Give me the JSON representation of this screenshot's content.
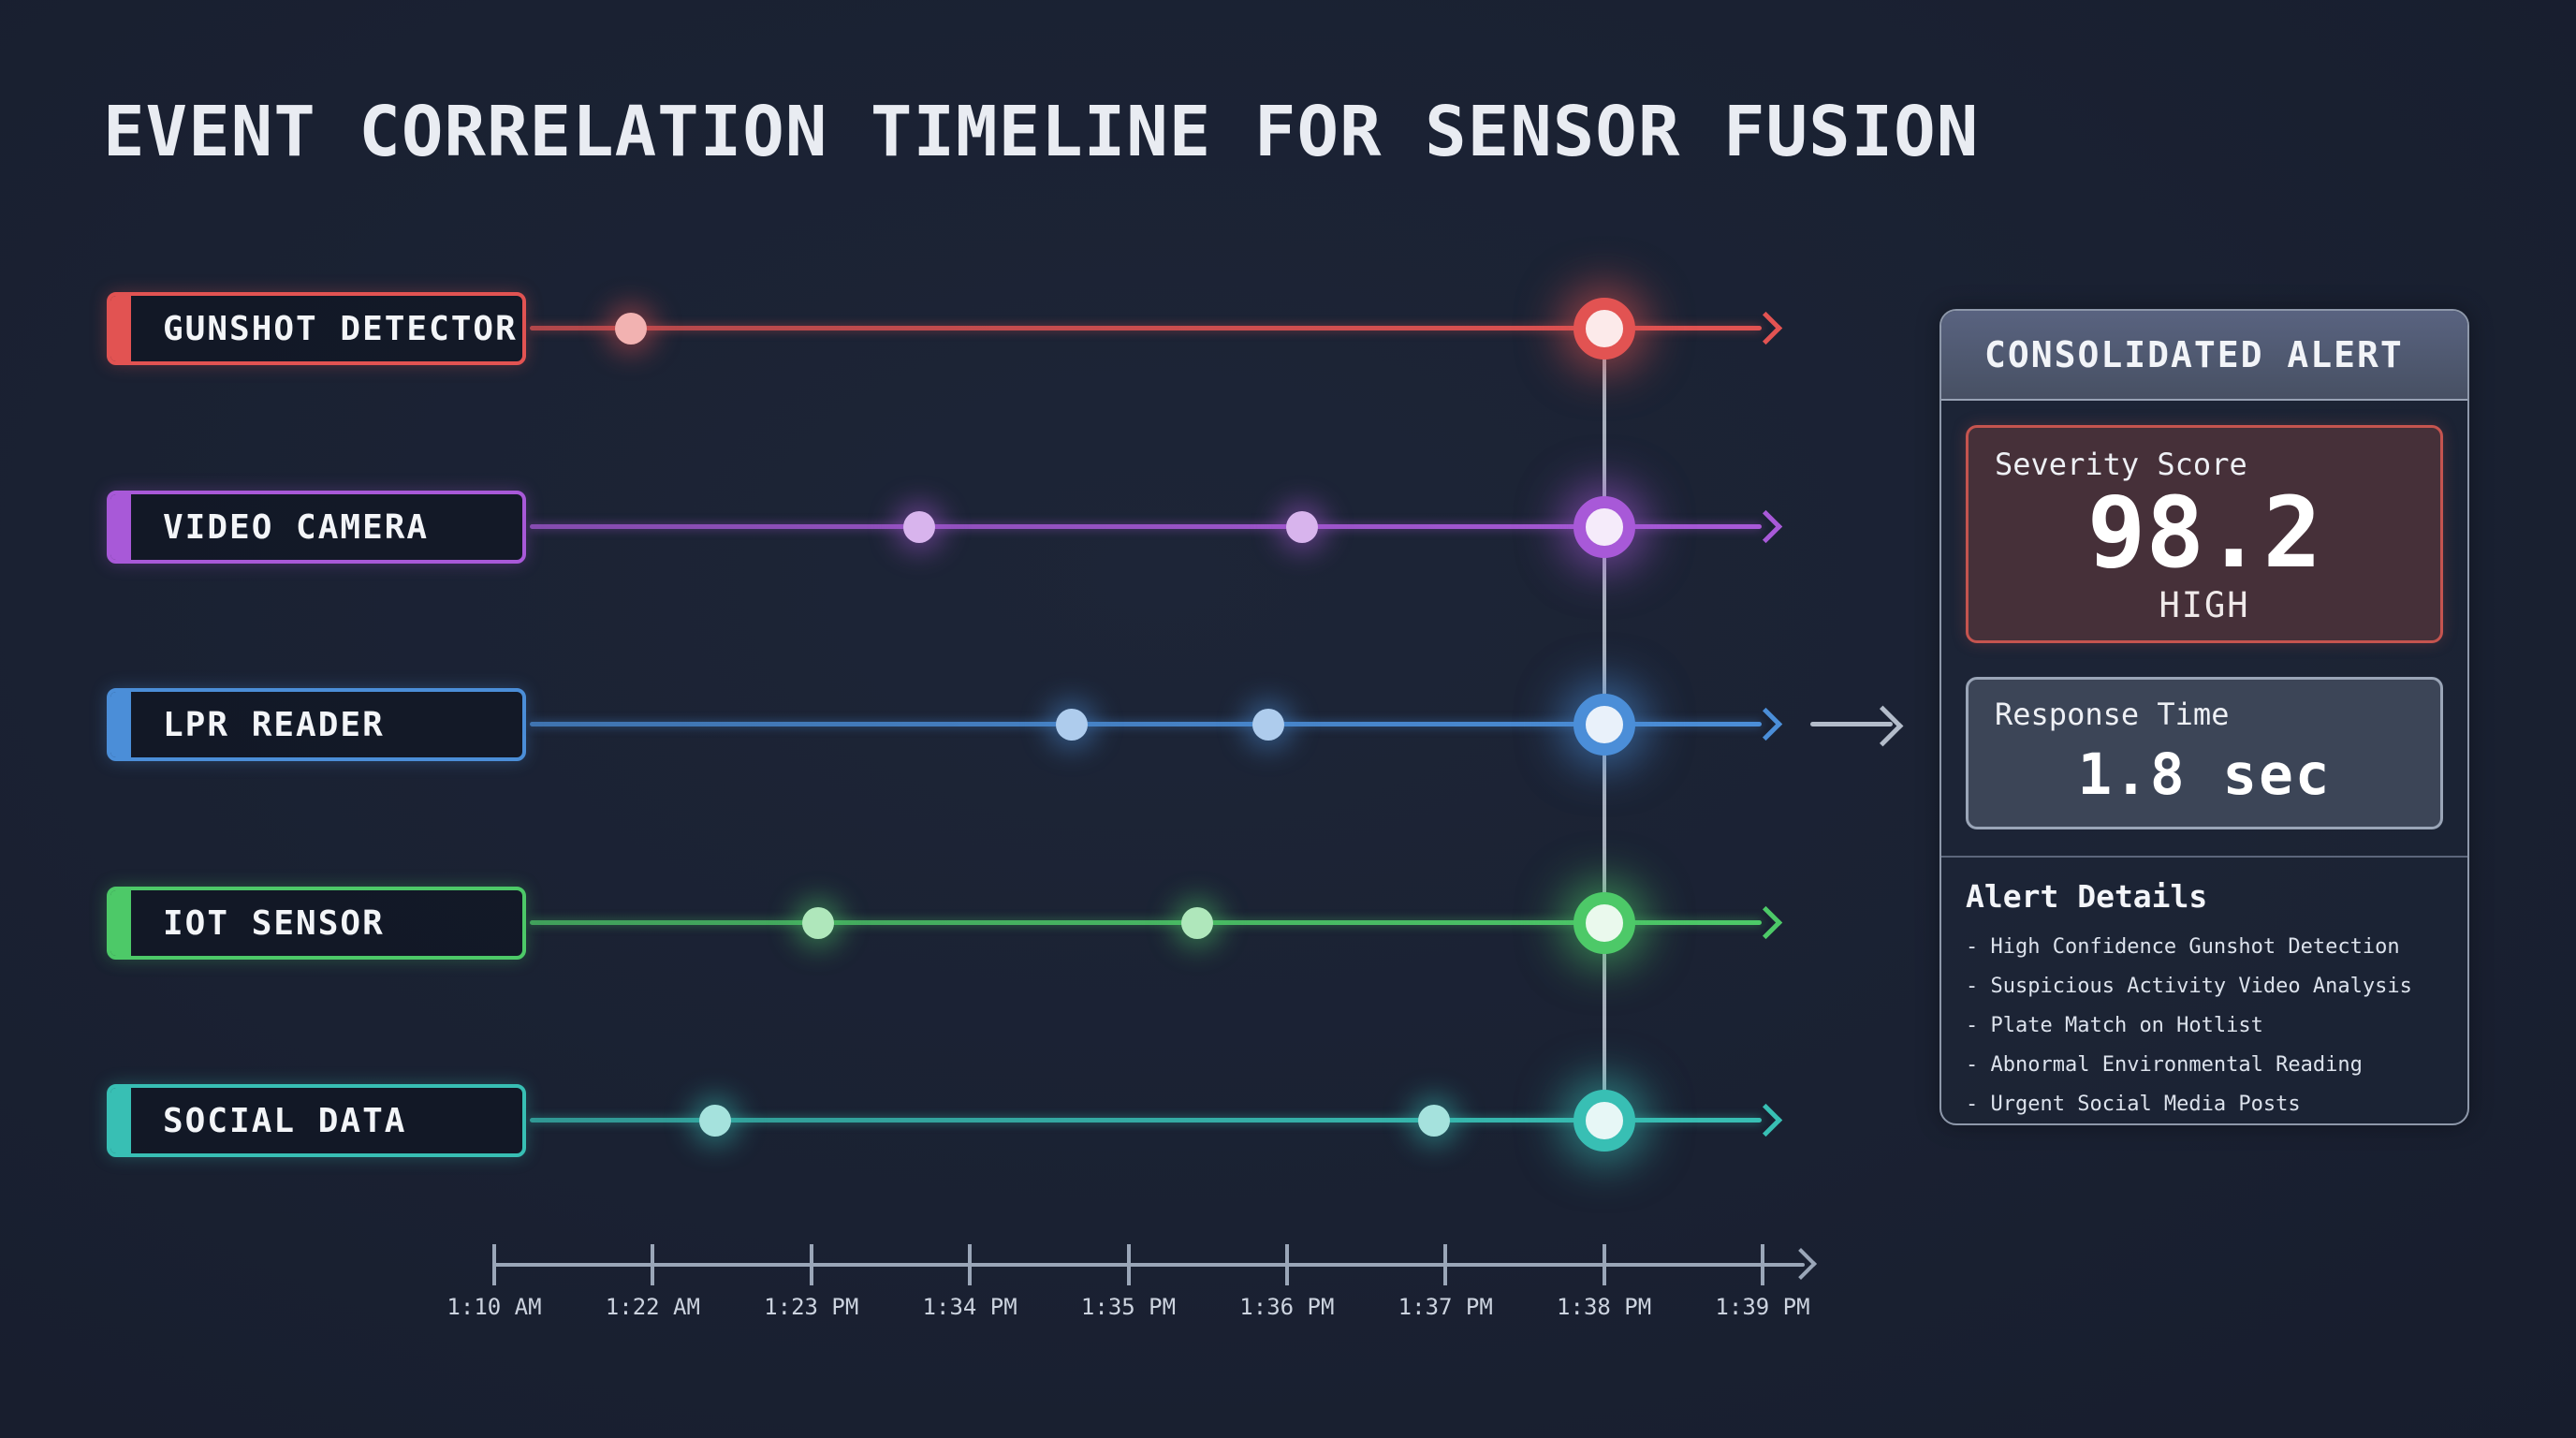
{
  "title": "EVENT CORRELATION TIMELINE FOR SENSOR FUSION",
  "alert_panel": {
    "header": "CONSOLIDATED ALERT",
    "severity": {
      "label": "Severity Score",
      "value": "98.2",
      "level": "HIGH",
      "border_color": "#c5544f",
      "bg_color": "#463039"
    },
    "response": {
      "label": "Response Time",
      "value": "1.8 sec",
      "border_color": "#9aa5b7",
      "bg_color": "#3c4557"
    },
    "details_title": "Alert Details",
    "details": [
      "High Confidence Gunshot Detection",
      "Suspicious Activity Video Analysis",
      "Plate Match on Hotlist",
      "Abnormal Environmental Reading",
      "Urgent Social Media Posts"
    ]
  },
  "chart_data": {
    "type": "timeline",
    "title": "EVENT CORRELATION TIMELINE FOR SENSOR FUSION",
    "x_ticks": [
      "1:10 AM",
      "1:22 AM",
      "1:23 PM",
      "1:34 PM",
      "1:35 PM",
      "1:36 PM",
      "1:37 PM",
      "1:38 PM",
      "1:39 PM"
    ],
    "convergence_tick": "1:38 PM",
    "convergence_x_frac": 0.875,
    "series": [
      {
        "name": "GUNSHOT DETECTOR",
        "color": "#e25352",
        "events": [
          {
            "x_frac": 0.108,
            "size": "small"
          },
          {
            "x_frac": 0.875,
            "size": "large",
            "converged": true
          }
        ]
      },
      {
        "name": "VIDEO CAMERA",
        "color": "#a859d8",
        "events": [
          {
            "x_frac": 0.335,
            "size": "small"
          },
          {
            "x_frac": 0.637,
            "size": "small"
          },
          {
            "x_frac": 0.875,
            "size": "large",
            "converged": true
          }
        ]
      },
      {
        "name": "LPR READER",
        "color": "#4b8ed8",
        "events": [
          {
            "x_frac": 0.455,
            "size": "small"
          },
          {
            "x_frac": 0.61,
            "size": "small"
          },
          {
            "x_frac": 0.875,
            "size": "large",
            "converged": true
          }
        ]
      },
      {
        "name": "IOT SENSOR",
        "color": "#4dc968",
        "events": [
          {
            "x_frac": 0.255,
            "size": "small"
          },
          {
            "x_frac": 0.554,
            "size": "small"
          },
          {
            "x_frac": 0.875,
            "size": "large",
            "converged": true
          }
        ]
      },
      {
        "name": "SOCIAL DATA",
        "color": "#38bfb4",
        "events": [
          {
            "x_frac": 0.174,
            "size": "small"
          },
          {
            "x_frac": 0.741,
            "size": "small"
          },
          {
            "x_frac": 0.875,
            "size": "large",
            "converged": true
          }
        ]
      }
    ]
  }
}
